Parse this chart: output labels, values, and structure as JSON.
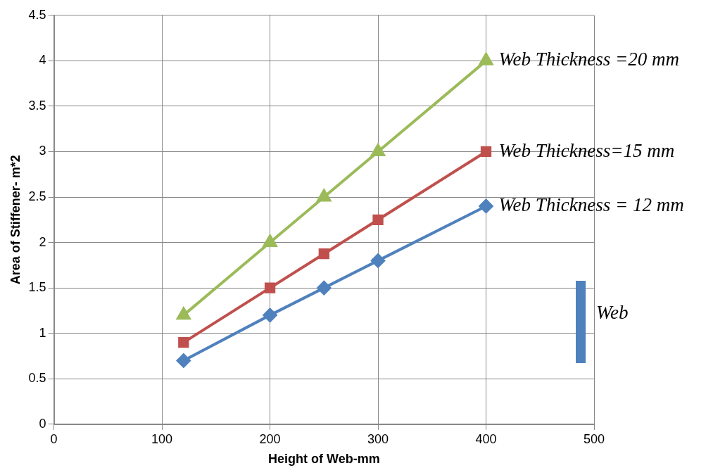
{
  "chart_data": {
    "type": "line",
    "xlabel": "Height of Web-mm",
    "ylabel": "Area of Stiffener- m*2",
    "x": [
      120,
      200,
      250,
      300,
      400
    ],
    "series": [
      {
        "name": "Web Thickness =20 mm",
        "color": "#9bbb59",
        "values": [
          1.2,
          2,
          2.5,
          3,
          4
        ],
        "marker": "triangle"
      },
      {
        "name": "Web Thickness=15 mm",
        "color": "#c0504d",
        "values": [
          0.9,
          1.5,
          1.875,
          2.25,
          3
        ],
        "marker": "square"
      },
      {
        "name": "Web Thickness = 12 mm",
        "color": "#4f81bd",
        "values": [
          0.7,
          1.2,
          1.5,
          1.8,
          2.4
        ],
        "marker": "diamond"
      }
    ],
    "xlim": [
      0,
      500
    ],
    "xticks": [
      0,
      100,
      200,
      300,
      400,
      500
    ],
    "ylim": [
      0,
      4.5
    ],
    "yticks": [
      0,
      0.5,
      1,
      1.5,
      2,
      2.5,
      3,
      3.5,
      4,
      4.5
    ],
    "grid": true,
    "legend": false,
    "annotations": [
      "Web"
    ]
  }
}
